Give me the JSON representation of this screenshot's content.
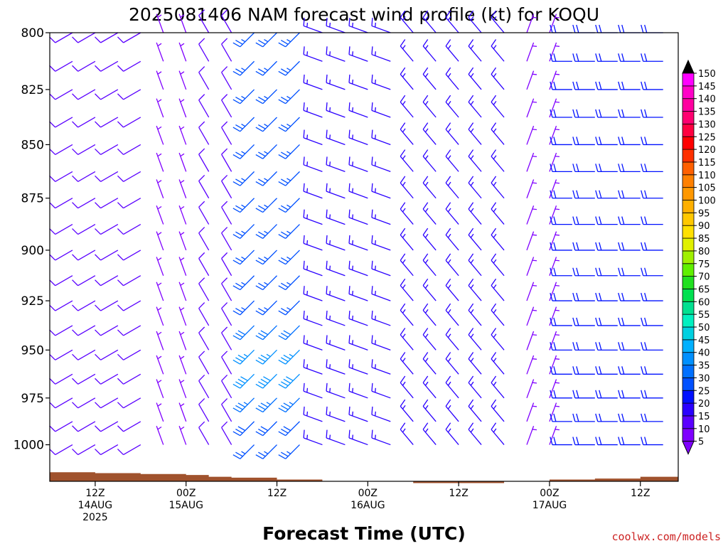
{
  "chart_data": {
    "type": "wind-barb profile",
    "title": "2025081406 NAM forecast wind profile (kt) for KOQU",
    "xlabel": "Forecast Time (UTC)",
    "credit": "coolwx.com/models",
    "y_axis": {
      "scale": "pressure (reversed, hPa)",
      "range": [
        1020,
        800
      ],
      "ticks": [
        "800",
        "825",
        "850",
        "875",
        "900",
        "925",
        "950",
        "975",
        "1000"
      ]
    },
    "x_axis": {
      "start": "2025-08-14 06Z",
      "end": "2025-08-17 17Z",
      "ticks": [
        {
          "at": "2025-08-14 12Z",
          "lines": [
            "12Z",
            "14AUG",
            "2025"
          ]
        },
        {
          "at": "2025-08-15 00Z",
          "lines": [
            "00Z",
            "15AUG"
          ]
        },
        {
          "at": "2025-08-15 12Z",
          "lines": [
            "12Z"
          ]
        },
        {
          "at": "2025-08-16 00Z",
          "lines": [
            "00Z",
            "16AUG"
          ]
        },
        {
          "at": "2025-08-16 12Z",
          "lines": [
            "12Z"
          ]
        },
        {
          "at": "2025-08-17 00Z",
          "lines": [
            "00Z",
            "17AUG"
          ]
        },
        {
          "at": "2025-08-17 12Z",
          "lines": [
            "12Z"
          ]
        }
      ]
    },
    "colorbar": {
      "unit": "kt",
      "labels": [
        "5",
        "10",
        "15",
        "20",
        "25",
        "30",
        "35",
        "40",
        "45",
        "50",
        "55",
        "60",
        "65",
        "70",
        "75",
        "80",
        "85",
        "90",
        "95",
        "100",
        "105",
        "110",
        "115",
        "120",
        "125",
        "130",
        "135",
        "140",
        "145",
        "150"
      ],
      "colors": [
        "#7f00ff",
        "#5a00ff",
        "#2a00ff",
        "#0010ff",
        "#0050ff",
        "#0070ff",
        "#0090ff",
        "#00b0ff",
        "#00d0e0",
        "#00f0c0",
        "#00e090",
        "#00e050",
        "#20e020",
        "#60f000",
        "#a0f000",
        "#e0f000",
        "#ffe000",
        "#ffc800",
        "#ffb000",
        "#ff9800",
        "#ff8000",
        "#ff6000",
        "#ff3000",
        "#ff0000",
        "#ff0040",
        "#ff0070",
        "#ff00a0",
        "#ff00c8",
        "#ff00ff"
      ],
      "top_arrow": "#000000",
      "bottom_arrow": "#7f00ff"
    },
    "surface_pressure": [
      {
        "t": "2025-08-14 06Z",
        "p": 1015
      },
      {
        "t": "2025-08-14 12Z",
        "p": 1015.5
      },
      {
        "t": "2025-08-14 18Z",
        "p": 1016
      },
      {
        "t": "2025-08-15 00Z",
        "p": 1016.5
      },
      {
        "t": "2025-08-15 03Z",
        "p": 1017.5
      },
      {
        "t": "2025-08-15 06Z",
        "p": 1018
      },
      {
        "t": "2025-08-15 12Z",
        "p": 1019
      },
      {
        "t": "2025-08-15 18Z",
        "p": 1020
      },
      {
        "t": "2025-08-16 00Z",
        "p": 1020
      },
      {
        "t": "2025-08-16 06Z",
        "p": 1021
      },
      {
        "t": "2025-08-16 12Z",
        "p": 1021
      },
      {
        "t": "2025-08-16 18Z",
        "p": 1020
      },
      {
        "t": "2025-08-17 00Z",
        "p": 1019
      },
      {
        "t": "2025-08-17 06Z",
        "p": 1018.5
      },
      {
        "t": "2025-08-17 12Z",
        "p": 1017.5
      },
      {
        "t": "2025-08-17 17Z",
        "p": 1017
      }
    ],
    "levels": [
      800,
      812.5,
      825,
      837.5,
      850,
      862.5,
      875,
      887.5,
      900,
      912.5,
      925,
      937.5,
      950,
      962.5,
      975,
      987.5,
      1000
    ],
    "wind_regimes": [
      {
        "period": "2025-08-14 06Z to 2025-08-14 21Z",
        "direction_deg": 240,
        "speed_kt": 10
      },
      {
        "period": "2025-08-14 21Z to 2025-08-15 03Z",
        "direction_deg": 340,
        "speed_kt": 5
      },
      {
        "period": "2025-08-15 03Z to 2025-08-15 09Z",
        "direction_deg": 330,
        "speed_kt": 10
      },
      {
        "period": "2025-08-15 09Z to 2025-08-15 18Z",
        "direction_deg": 225,
        "speed_kt": 25,
        "max_speed_kt": 40,
        "max_layer_hpa": [
          950,
          970
        ]
      },
      {
        "period": "2025-08-15 18Z to 2025-08-16 06Z",
        "direction_deg": 290,
        "speed_kt": 15
      },
      {
        "period": "2025-08-16 06Z to 2025-08-16 21Z",
        "direction_deg": 320,
        "speed_kt": 15
      },
      {
        "period": "2025-08-16 21Z to 2025-08-17 03Z",
        "direction_deg": 20,
        "speed_kt": 5
      },
      {
        "period": "2025-08-17 03Z to 2025-08-17 17Z",
        "direction_deg": 270,
        "speed_kt": 20
      }
    ]
  }
}
